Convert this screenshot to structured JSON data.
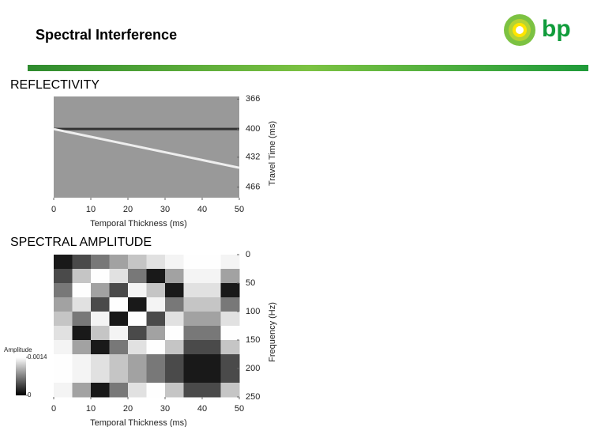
{
  "header": {
    "title": "Spectral Interference",
    "logo_text": "bp"
  },
  "chart_data": [
    {
      "type": "line",
      "title": "REFLECTIVITY",
      "xlabel": "Temporal Thickness (ms)",
      "ylabel": "Travel Time (ms)",
      "xlim": [
        0,
        50
      ],
      "xticks": [
        0,
        10,
        20,
        30,
        40,
        50
      ],
      "ylim": [
        363,
        478
      ],
      "y_inverted": true,
      "yticks": [
        366,
        400,
        432,
        466
      ],
      "background": "#999999",
      "series": [
        {
          "color": "#333333",
          "x": [
            0,
            50
          ],
          "values": [
            400,
            400
          ]
        },
        {
          "color": "#eeeeee",
          "x": [
            0,
            50
          ],
          "values": [
            400,
            444
          ]
        }
      ]
    },
    {
      "type": "heatmap",
      "title": "SPECTRAL AMPLITUDE",
      "xlabel": "Temporal Thickness (ms)",
      "ylabel": "Frequency (Hz)",
      "xlim": [
        0,
        50
      ],
      "xticks": [
        0,
        10,
        20,
        30,
        40,
        50
      ],
      "ylim": [
        0,
        250
      ],
      "y_inverted": true,
      "yticks": [
        0,
        50,
        100,
        150,
        200,
        250
      ],
      "x": [
        2.5,
        7.5,
        12.5,
        17.5,
        22.5,
        27.5,
        32.5,
        37.5,
        42.5,
        47.5
      ],
      "y": [
        12.5,
        37.5,
        62.5,
        87.5,
        112.5,
        137.5,
        162.5,
        187.5,
        212.5,
        237.5
      ],
      "z": [
        [
          0.000137,
          0.000406,
          0.000659,
          0.000888,
          0.001082,
          0.001235,
          0.00134,
          0.001393,
          0.001393,
          0.00134
        ],
        [
          0.000406,
          0.001082,
          0.001393,
          0.001235,
          0.000659,
          0.000137,
          0.000888,
          0.00134,
          0.00134,
          0.000888
        ],
        [
          0.000659,
          0.001393,
          0.000888,
          0.000406,
          0.00134,
          0.001082,
          0.000137,
          0.001235,
          0.001235,
          0.000137
        ],
        [
          0.000888,
          0.001235,
          0.000406,
          0.001393,
          0.000137,
          0.00134,
          0.000659,
          0.001082,
          0.001082,
          0.000659
        ],
        [
          0.001082,
          0.000659,
          0.00134,
          0.000137,
          0.001393,
          0.000406,
          0.001235,
          0.000888,
          0.000888,
          0.001235
        ],
        [
          0.001235,
          0.000137,
          0.001082,
          0.00134,
          0.000406,
          0.000888,
          0.001393,
          0.000659,
          0.000659,
          0.001393
        ],
        [
          0.00134,
          0.000888,
          0.000137,
          0.000659,
          0.001235,
          0.001393,
          0.001082,
          0.000406,
          0.000406,
          0.001082
        ],
        [
          0.001393,
          0.00134,
          0.001235,
          0.001082,
          0.000888,
          0.000659,
          0.000406,
          0.000137,
          0.000137,
          0.000406
        ],
        [
          0.001393,
          0.00134,
          0.001235,
          0.001082,
          0.000888,
          0.000659,
          0.000406,
          0.000137,
          0.000137,
          0.000406
        ],
        [
          0.00134,
          0.000888,
          0.000137,
          0.000659,
          0.001235,
          0.001393,
          0.001082,
          0.000406,
          0.000406,
          0.001082
        ]
      ],
      "clim": [
        0,
        0.0014
      ],
      "colorbar_label": "Amplitude",
      "colorbar_ticks": [
        0,
        {
          "value": 0.0014,
          "label": "0.0014"
        }
      ]
    }
  ]
}
